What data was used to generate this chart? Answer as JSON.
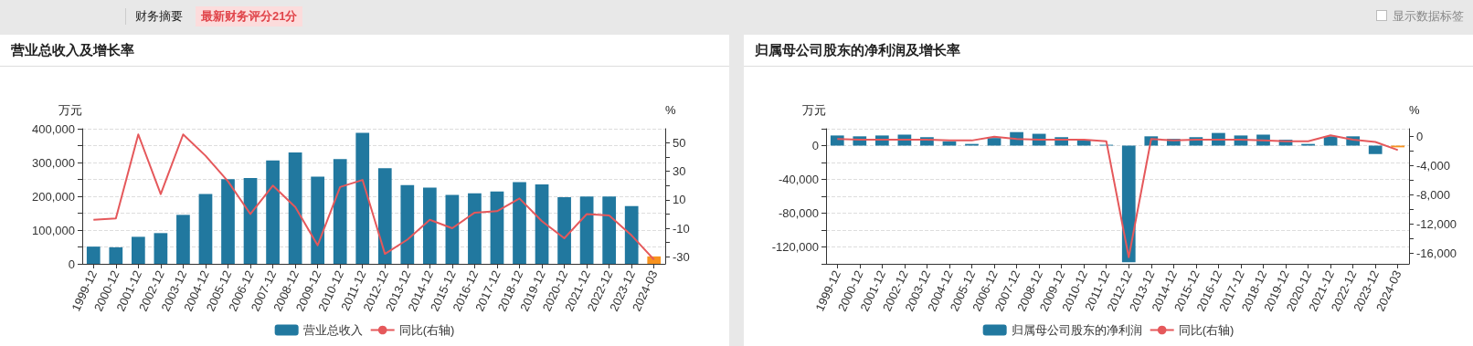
{
  "chart_data": [
    {
      "type": "bar",
      "title": "营业总收入及增长率",
      "ylabel": "万元",
      "y2label": "%",
      "annotations": [
        "财务摘要",
        "最新财务评分21分",
        "显示数据标签"
      ],
      "categories": [
        "1999-12",
        "2000-12",
        "2001-12",
        "2002-12",
        "2003-12",
        "2004-12",
        "2005-12",
        "2006-12",
        "2007-12",
        "2008-12",
        "2009-12",
        "2010-12",
        "2011-12",
        "2012-12",
        "2013-12",
        "2014-12",
        "2015-12",
        "2016-12",
        "2017-12",
        "2018-12",
        "2019-12",
        "2020-12",
        "2021-12",
        "2022-12",
        "2023-12",
        "2024-03"
      ],
      "series": [
        {
          "name": "营业总收入",
          "color": "#21789f",
          "colors": [
            "#21789f",
            "#21789f",
            "#21789f",
            "#21789f",
            "#21789f",
            "#21789f",
            "#21789f",
            "#21789f",
            "#21789f",
            "#21789f",
            "#21789f",
            "#21789f",
            "#21789f",
            "#21789f",
            "#21789f",
            "#21789f",
            "#21789f",
            "#21789f",
            "#21789f",
            "#21789f",
            "#21789f",
            "#21789f",
            "#21789f",
            "#21789f",
            "#21789f",
            "#f7921e"
          ],
          "values": [
            51000,
            49000,
            80000,
            91000,
            145000,
            207000,
            251000,
            254000,
            306000,
            330000,
            258000,
            310000,
            388000,
            283000,
            233000,
            226000,
            204000,
            209000,
            214000,
            242000,
            235000,
            197000,
            199000,
            199000,
            171000,
            22000
          ]
        },
        {
          "name": "同比(右轴)",
          "type": "line",
          "axis": "y2",
          "color": "#e5585b",
          "values": [
            -4,
            -3,
            56,
            14,
            56,
            41,
            23,
            0,
            20,
            5,
            -22,
            19,
            24,
            -28,
            -18,
            -4,
            -10,
            1,
            2,
            11,
            -5,
            -17,
            0,
            -1,
            -15,
            -32
          ]
        }
      ],
      "ylim": [
        0,
        400000
      ],
      "yticks": [
        0,
        {
          "value": 50000,
          "label": null
        },
        {
          "value": 100000,
          "label": "100,000"
        },
        {
          "value": 150000,
          "label": null
        },
        {
          "value": 200000,
          "label": "200,000"
        },
        {
          "value": 250000,
          "label": null
        },
        {
          "value": 300000,
          "label": "300,000"
        },
        {
          "value": 350000,
          "label": null
        },
        {
          "value": 400000,
          "label": "400,000"
        }
      ],
      "y2lim": [
        -35,
        60
      ],
      "y2ticks": [
        -30,
        {
          "value": -20,
          "label": null
        },
        -10,
        {
          "value": 0,
          "label": null
        },
        10,
        {
          "value": 20,
          "label": null
        },
        30,
        {
          "value": 40,
          "label": null
        },
        50
      ],
      "grid": "y",
      "legend": "bottom",
      "marker": "none",
      "line_style": "solid"
    },
    {
      "type": "bar",
      "title": "归属母公司股东的净利润及增长率",
      "ylabel": "万元",
      "y2label": "%",
      "categories": [
        "1999-12",
        "2000-12",
        "2001-12",
        "2002-12",
        "2003-12",
        "2004-12",
        "2005-12",
        "2006-12",
        "2007-12",
        "2008-12",
        "2009-12",
        "2010-12",
        "2011-12",
        "2012-12",
        "2013-12",
        "2014-12",
        "2015-12",
        "2016-12",
        "2017-12",
        "2018-12",
        "2019-12",
        "2020-12",
        "2021-12",
        "2022-12",
        "2023-12",
        "2024-03"
      ],
      "series": [
        {
          "name": "归属母公司股东的净利润",
          "color": "#21789f",
          "colors": [
            "#21789f",
            "#21789f",
            "#21789f",
            "#21789f",
            "#21789f",
            "#21789f",
            "#21789f",
            "#21789f",
            "#21789f",
            "#21789f",
            "#21789f",
            "#21789f",
            "#21789f",
            "#21789f",
            "#21789f",
            "#21789f",
            "#21789f",
            "#21789f",
            "#21789f",
            "#21789f",
            "#21789f",
            "#21789f",
            "#21789f",
            "#21789f",
            "#21789f",
            "#f7921e"
          ],
          "values": [
            12000,
            11000,
            12000,
            13000,
            10000,
            5000,
            2000,
            9000,
            16000,
            14000,
            10000,
            6000,
            1000,
            -138000,
            11000,
            8000,
            10000,
            15000,
            12000,
            13000,
            7000,
            2000,
            11000,
            11000,
            -10000,
            -2000
          ]
        },
        {
          "name": "同比(右轴)",
          "type": "line",
          "axis": "y2",
          "color": "#e5585b",
          "values": [
            -400,
            -500,
            -500,
            -500,
            -500,
            -600,
            -600,
            -100,
            -400,
            -500,
            -500,
            -500,
            -700,
            -16500,
            -400,
            -600,
            -500,
            -500,
            -500,
            -600,
            -700,
            -700,
            100,
            -500,
            -800,
            -1900
          ]
        }
      ],
      "ylim": [
        -140000,
        20000
      ],
      "yticks": [
        {
          "value": -140000,
          "label": null
        },
        {
          "value": -120000,
          "label": "-120,000"
        },
        {
          "value": -100000,
          "label": null
        },
        {
          "value": -80000,
          "label": "-80,000"
        },
        {
          "value": -60000,
          "label": null
        },
        {
          "value": -40000,
          "label": "-40,000"
        },
        {
          "value": -20000,
          "label": null
        },
        0,
        {
          "value": 20000,
          "label": null
        }
      ],
      "y2lim": [
        -17400,
        1000
      ],
      "y2ticks": [
        {
          "value": -16000,
          "label": "-16,000"
        },
        {
          "value": -14000,
          "label": null
        },
        {
          "value": -12000,
          "label": "-12,000"
        },
        {
          "value": -10000,
          "label": null
        },
        {
          "value": -8000,
          "label": "-8,000"
        },
        {
          "value": -6000,
          "label": null
        },
        {
          "value": -4000,
          "label": "-4,000"
        },
        {
          "value": -2000,
          "label": null
        },
        0
      ],
      "grid": "y",
      "legend": "bottom",
      "marker": "none",
      "line_style": "solid"
    }
  ]
}
